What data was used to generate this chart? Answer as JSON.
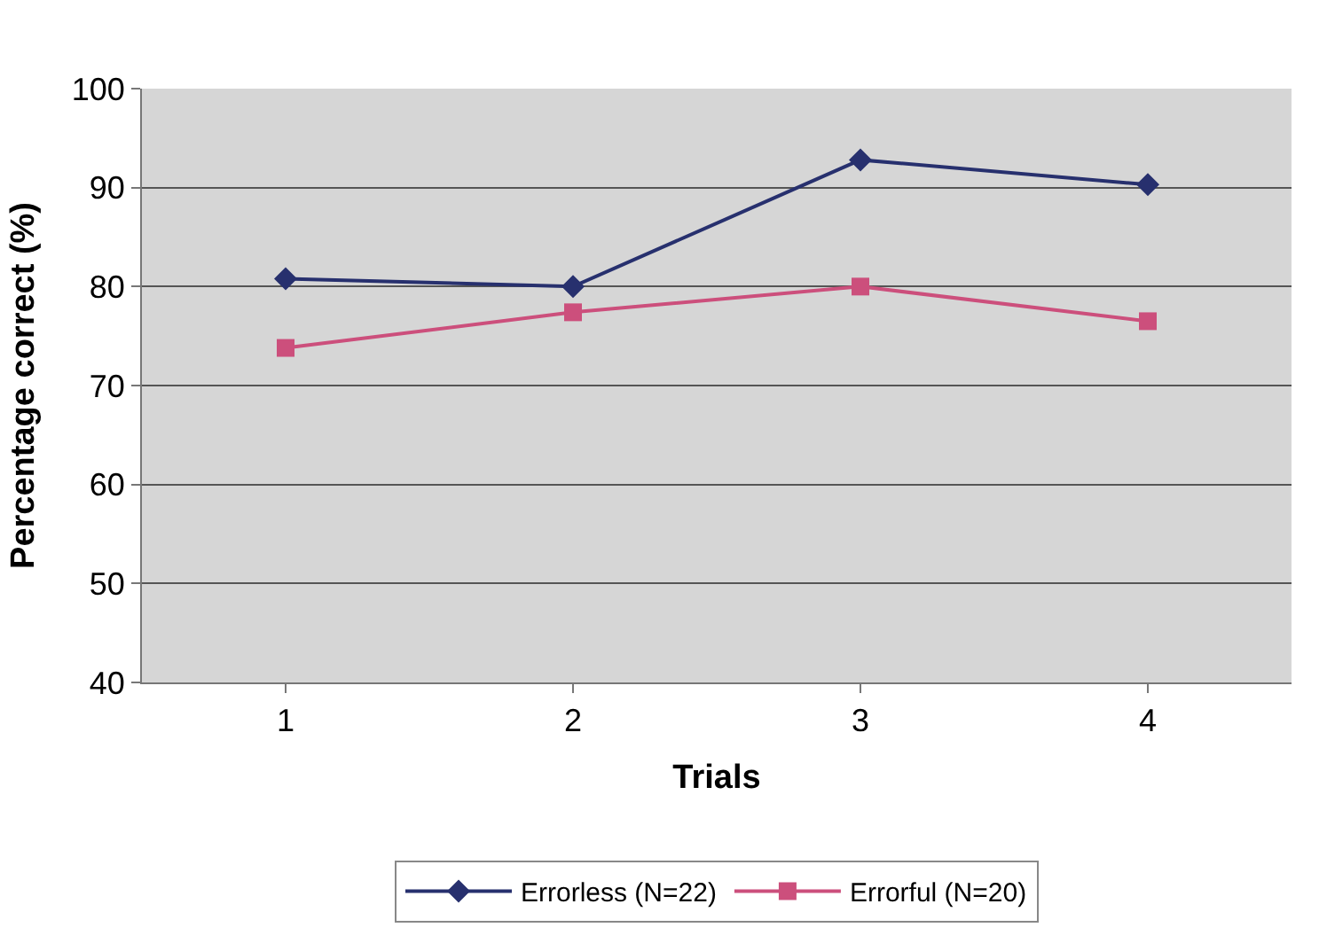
{
  "chart_data": {
    "type": "line",
    "xlabel": "Trials",
    "ylabel": "Percentage correct (%)",
    "categories": [
      "1",
      "2",
      "3",
      "4"
    ],
    "series": [
      {
        "name": "Errorless (N=22)",
        "color": "#27306e",
        "marker": "diamond",
        "values": [
          80.8,
          80.0,
          92.8,
          90.3
        ]
      },
      {
        "name": "Errorful (N=20)",
        "color": "#cc4f7c",
        "marker": "square",
        "values": [
          73.8,
          77.4,
          80.0,
          76.5
        ]
      }
    ],
    "ylim": [
      40,
      100
    ],
    "yticks": [
      40,
      50,
      60,
      70,
      80,
      90,
      100
    ],
    "grid": "y",
    "legend": "bottom",
    "line_style": "solid"
  }
}
